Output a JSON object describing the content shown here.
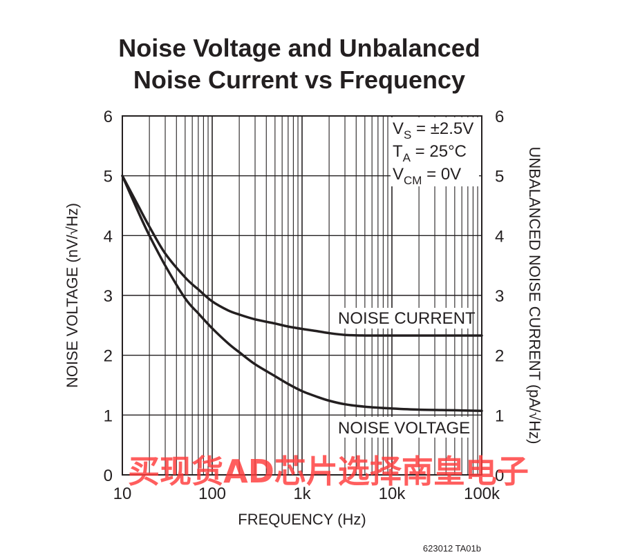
{
  "chart_data": {
    "type": "line",
    "title_line1": "Noise Voltage and Unbalanced",
    "title_line2": "Noise Current vs Frequency",
    "xlabel": "FREQUENCY (Hz)",
    "ylabel_left": "NOISE VOLTAGE (nV/√Hz)",
    "ylabel_right": "UNBALANCED NOISE CURRENT (pA/√Hz)",
    "x_scale": "log",
    "xlim": [
      10,
      100000
    ],
    "ylim": [
      0,
      6
    ],
    "x_ticks": [
      {
        "value": 10,
        "label": "10"
      },
      {
        "value": 100,
        "label": "100"
      },
      {
        "value": 1000,
        "label": "1k"
      },
      {
        "value": 10000,
        "label": "10k"
      },
      {
        "value": 100000,
        "label": "100k"
      }
    ],
    "y_ticks": [
      {
        "value": 0,
        "label": "0"
      },
      {
        "value": 1,
        "label": "1"
      },
      {
        "value": 2,
        "label": "2"
      },
      {
        "value": 3,
        "label": "3"
      },
      {
        "value": 4,
        "label": "4"
      },
      {
        "value": 5,
        "label": "5"
      },
      {
        "value": 6,
        "label": "6"
      }
    ],
    "grid": true,
    "conditions": [
      {
        "main": "V",
        "sub": "S",
        "rest": " = ±2.5V"
      },
      {
        "main": "T",
        "sub": "A",
        "rest": " = 25°C"
      },
      {
        "main": "V",
        "sub": "CM",
        "rest": " = 0V"
      }
    ],
    "series": [
      {
        "name": "NOISE CURRENT",
        "x": [
          10,
          15,
          20,
          30,
          50,
          70,
          100,
          150,
          200,
          300,
          500,
          700,
          1000,
          1500,
          2000,
          3000,
          5000,
          10000,
          20000,
          50000,
          100000
        ],
        "y": [
          5.0,
          4.5,
          4.15,
          3.7,
          3.3,
          3.1,
          2.9,
          2.75,
          2.68,
          2.6,
          2.53,
          2.48,
          2.44,
          2.4,
          2.37,
          2.34,
          2.33,
          2.33,
          2.33,
          2.33,
          2.33
        ]
      },
      {
        "name": "NOISE VOLTAGE",
        "x": [
          10,
          15,
          20,
          30,
          50,
          70,
          100,
          150,
          200,
          300,
          500,
          700,
          1000,
          1500,
          2000,
          3000,
          5000,
          10000,
          20000,
          50000,
          100000
        ],
        "y": [
          5.0,
          4.4,
          4.0,
          3.5,
          2.95,
          2.7,
          2.45,
          2.2,
          2.05,
          1.85,
          1.65,
          1.52,
          1.4,
          1.3,
          1.24,
          1.18,
          1.14,
          1.11,
          1.09,
          1.08,
          1.07
        ]
      }
    ]
  },
  "figure_code": "623012 TA01b",
  "watermark": "买现货AD芯片选择南皇电子",
  "colors": {
    "ink": "#231f20",
    "watermark": "#ff3a3a"
  }
}
